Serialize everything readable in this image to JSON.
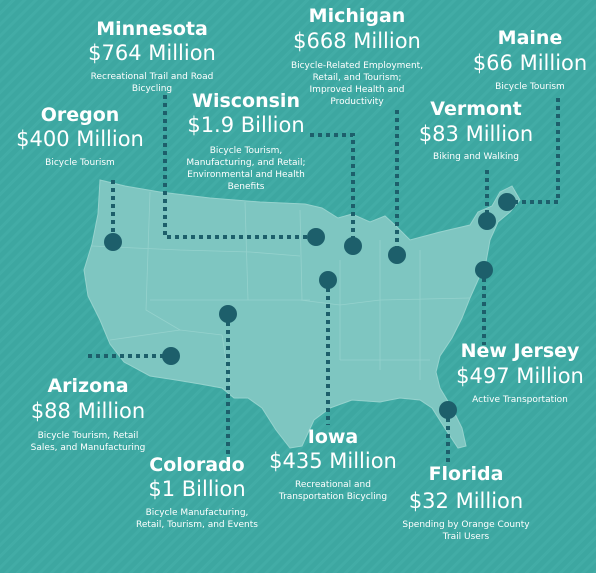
{
  "regions": [
    {
      "name": "Minnesota",
      "amount": "$764 Million",
      "description": [
        "Recreational Trail and Road",
        "Bicycling"
      ]
    },
    {
      "name": "Michigan",
      "amount": "$668 Million",
      "description": [
        "Bicycle-Related Employment,",
        "Retail, and Tourism;",
        "Improved Health and",
        "Productivity"
      ]
    },
    {
      "name": "Maine",
      "amount": "$66 Million",
      "description": [
        "Bicycle Tourism"
      ]
    },
    {
      "name": "Oregon",
      "amount": "$400 Million",
      "description": [
        "Bicycle Tourism"
      ]
    },
    {
      "name": "Wisconsin",
      "amount": "$1.9 Billion",
      "description": [
        "Bicycle Tourism,",
        "Manufacturing, and Retail;",
        "Environmental and Health",
        "Benefits"
      ]
    },
    {
      "name": "Vermont",
      "amount": "$83 Million",
      "description": [
        "Biking and Walking"
      ]
    },
    {
      "name": "Arizona",
      "amount": "$88 Million",
      "description": [
        "Bicycle Tourism, Retail",
        "Sales, and Manufacturing"
      ]
    },
    {
      "name": "Colorado",
      "amount": "$1 Billion",
      "description": [
        "Bicycle Manufacturing,",
        "Retail, Tourism, and Events"
      ]
    },
    {
      "name": "Iowa",
      "amount": "$435 Million",
      "description": [
        "Recreational and",
        "Transportation Bicycling"
      ]
    },
    {
      "name": "New Jersey",
      "amount": "$497 Million",
      "description": [
        "Active Transportation"
      ]
    },
    {
      "name": "Florida",
      "amount": "$32 Million",
      "description": [
        "Spending by Orange County",
        "Trail Users"
      ]
    }
  ]
}
